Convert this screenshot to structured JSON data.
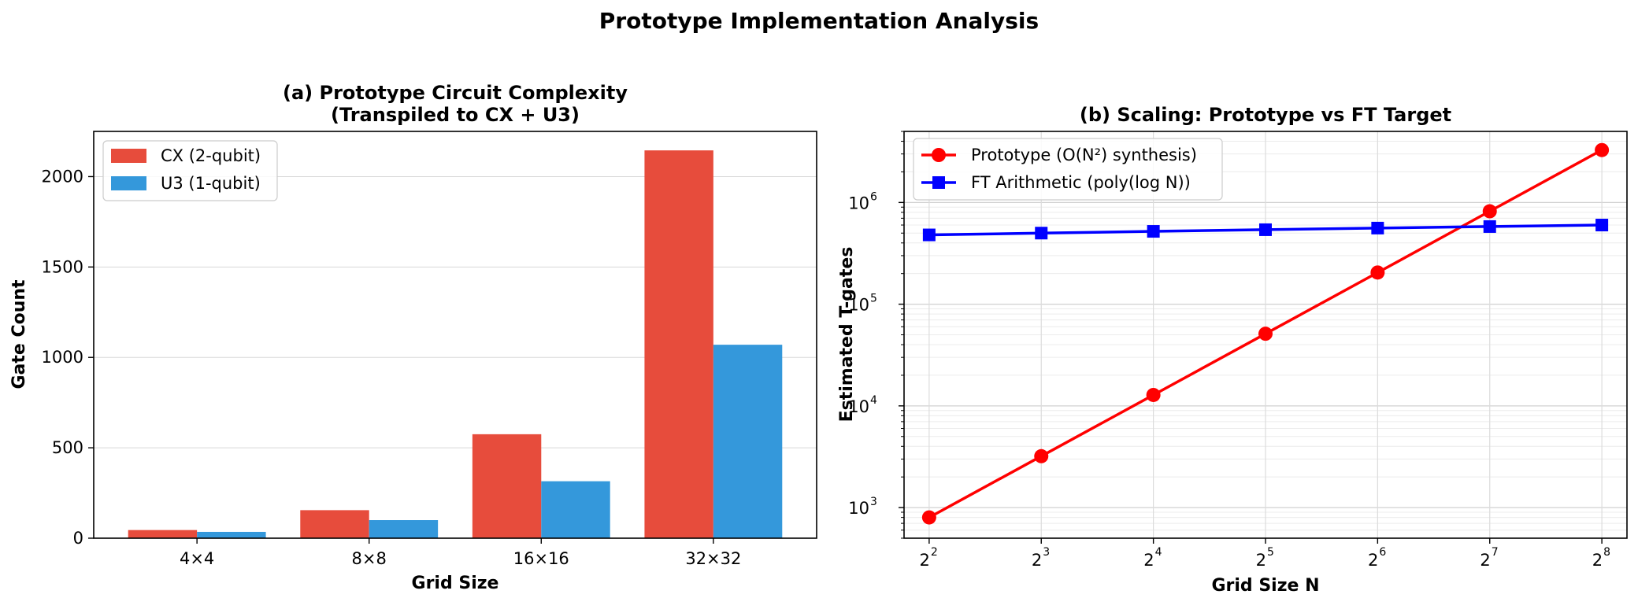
{
  "figure": {
    "suptitle": "Prototype Implementation Analysis"
  },
  "chart_data": [
    {
      "type": "bar",
      "title_line1": "(a) Prototype Circuit Complexity",
      "title_line2": "(Transpiled to CX + U3)",
      "xlabel": "Grid Size",
      "ylabel": "Gate Count",
      "categories": [
        "4×4",
        "8×8",
        "16×16",
        "32×32"
      ],
      "series": [
        {
          "name": "CX (2-qubit)",
          "color": "#e74c3c",
          "values": [
            45,
            155,
            575,
            2145
          ]
        },
        {
          "name": "U3 (1-qubit)",
          "color": "#3498db",
          "values": [
            35,
            100,
            315,
            1070
          ]
        }
      ],
      "ylim": [
        0,
        2250
      ],
      "yticks": [
        0,
        500,
        1000,
        1500,
        2000
      ],
      "grid": "y",
      "legend": "upper-left"
    },
    {
      "type": "line",
      "title": "(b) Scaling: Prototype vs FT Target",
      "xlabel": "Grid Size N",
      "ylabel": "Estimated T-gates",
      "xscale": "log2",
      "yscale": "log10",
      "x": [
        4,
        8,
        16,
        32,
        64,
        128,
        256
      ],
      "xtick_base": "2",
      "xtick_exponents": [
        "2",
        "3",
        "4",
        "5",
        "6",
        "7",
        "8"
      ],
      "ytick_base": "10",
      "ytick_exponents": [
        "3",
        "4",
        "5",
        "6"
      ],
      "series": [
        {
          "name": "Prototype (O(N²) synthesis)",
          "color": "#ff0000",
          "marker": "circle",
          "values": [
            800,
            3200,
            12800,
            51200,
            204800,
            819200,
            3276800
          ]
        },
        {
          "name": "FT Arithmetic (poly(log N))",
          "color": "#0000ff",
          "marker": "square",
          "values": [
            480000,
            500000,
            520000,
            540000,
            560000,
            580000,
            600000
          ]
        }
      ],
      "ylim": [
        500,
        5000000
      ],
      "grid": "both",
      "legend": "upper-left"
    }
  ]
}
